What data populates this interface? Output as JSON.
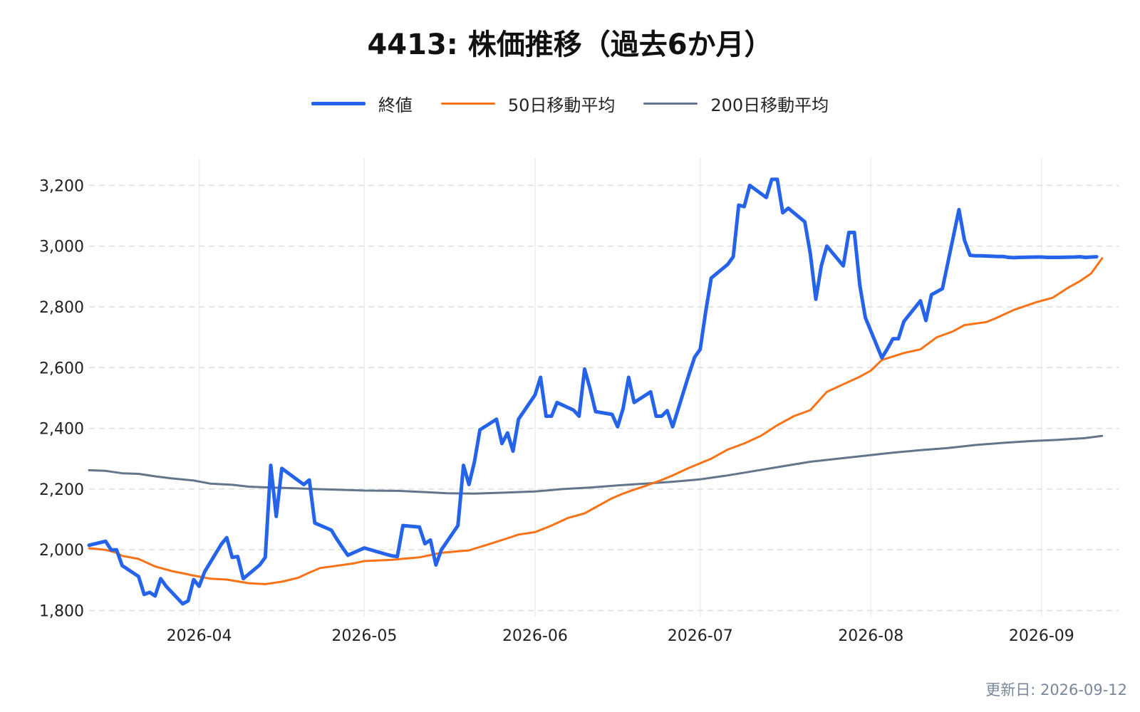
{
  "chart_data": {
    "type": "line",
    "title": "4413: 株価推移（過去6か月）",
    "xlabel": "",
    "ylabel": "",
    "ylim": [
      1780,
      3290
    ],
    "xlim": [
      "2026-03-12",
      "2026-09-15"
    ],
    "yticks": [
      1800,
      2000,
      2200,
      2400,
      2600,
      2800,
      3000,
      3200
    ],
    "ytick_labels": [
      "1,800",
      "2,000",
      "2,200",
      "2,400",
      "2,600",
      "2,800",
      "3,000",
      "3,200"
    ],
    "xticks": [
      "2026-04-01",
      "2026-05-01",
      "2026-06-01",
      "2026-07-01",
      "2026-08-01",
      "2026-09-01"
    ],
    "xtick_labels": [
      "2026-04",
      "2026-05",
      "2026-06",
      "2026-07",
      "2026-08",
      "2026-09"
    ],
    "grid": "horizontal-dashed",
    "legend_position": "top-center",
    "series": [
      {
        "name": "終値",
        "color": "#2563eb",
        "width": 5,
        "x": [
          "2026-03-12",
          "2026-03-15",
          "2026-03-16",
          "2026-03-17",
          "2026-03-18",
          "2026-03-21",
          "2026-03-22",
          "2026-03-23",
          "2026-03-24",
          "2026-03-25",
          "2026-03-26",
          "2026-03-29",
          "2026-03-30",
          "2026-03-31",
          "2026-04-01",
          "2026-04-02",
          "2026-04-05",
          "2026-04-06",
          "2026-04-07",
          "2026-04-08",
          "2026-04-09",
          "2026-04-12",
          "2026-04-13",
          "2026-04-14",
          "2026-04-15",
          "2026-04-16",
          "2026-04-19",
          "2026-04-20",
          "2026-04-21",
          "2026-04-22",
          "2026-04-25",
          "2026-04-26",
          "2026-04-27",
          "2026-04-28",
          "2026-05-01",
          "2026-05-04",
          "2026-05-05",
          "2026-05-06",
          "2026-05-07",
          "2026-05-08",
          "2026-05-11",
          "2026-05-12",
          "2026-05-13",
          "2026-05-14",
          "2026-05-15",
          "2026-05-18",
          "2026-05-19",
          "2026-05-20",
          "2026-05-21",
          "2026-05-22",
          "2026-05-25",
          "2026-05-26",
          "2026-05-27",
          "2026-05-28",
          "2026-05-29",
          "2026-06-01",
          "2026-06-02",
          "2026-06-03",
          "2026-06-04",
          "2026-06-05",
          "2026-06-08",
          "2026-06-09",
          "2026-06-10",
          "2026-06-11",
          "2026-06-12",
          "2026-06-15",
          "2026-06-16",
          "2026-06-17",
          "2026-06-18",
          "2026-06-19",
          "2026-06-22",
          "2026-06-23",
          "2026-06-24",
          "2026-06-25",
          "2026-06-26",
          "2026-06-29",
          "2026-06-30",
          "2026-07-01",
          "2026-07-02",
          "2026-07-03",
          "2026-07-06",
          "2026-07-07",
          "2026-07-08",
          "2026-07-09",
          "2026-07-10",
          "2026-07-13",
          "2026-07-14",
          "2026-07-15",
          "2026-07-16",
          "2026-07-17",
          "2026-07-20",
          "2026-07-21",
          "2026-07-22",
          "2026-07-23",
          "2026-07-24",
          "2026-07-27",
          "2026-07-28",
          "2026-07-29",
          "2026-07-30",
          "2026-07-31",
          "2026-08-03",
          "2026-08-04",
          "2026-08-05",
          "2026-08-06",
          "2026-08-07",
          "2026-08-10",
          "2026-08-11",
          "2026-08-12",
          "2026-08-13",
          "2026-08-14",
          "2026-08-17",
          "2026-08-18",
          "2026-08-19",
          "2026-08-20",
          "2026-08-21",
          "2026-08-24",
          "2026-08-25",
          "2026-08-26",
          "2026-08-27",
          "2026-08-28",
          "2026-08-31",
          "2026-09-01",
          "2026-09-02",
          "2026-09-03",
          "2026-09-04",
          "2026-09-07",
          "2026-09-08",
          "2026-09-09",
          "2026-09-10",
          "2026-09-11"
        ],
        "y": [
          2015,
          2028,
          2000,
          2000,
          1948,
          1912,
          1853,
          1860,
          1848,
          1905,
          1880,
          1822,
          1832,
          1902,
          1880,
          1928,
          2018,
          2040,
          1975,
          1978,
          1905,
          1950,
          1975,
          2278,
          2110,
          2268,
          2228,
          2215,
          2230,
          2088,
          2065,
          2035,
          2008,
          1982,
          2006,
          1990,
          1985,
          1980,
          1978,
          2080,
          2075,
          2020,
          2032,
          1950,
          2000,
          2080,
          2278,
          2215,
          2290,
          2395,
          2430,
          2350,
          2385,
          2325,
          2430,
          2510,
          2568,
          2440,
          2440,
          2485,
          2460,
          2440,
          2595,
          2530,
          2455,
          2446,
          2405,
          2465,
          2568,
          2485,
          2520,
          2440,
          2440,
          2458,
          2405,
          2580,
          2635,
          2660,
          2785,
          2895,
          2940,
          2965,
          3135,
          3130,
          3200,
          3160,
          3220,
          3220,
          3110,
          3125,
          3080,
          2975,
          2825,
          2935,
          3000,
          2935,
          3045,
          3045,
          2870,
          2765,
          2632,
          2662,
          2695,
          2695,
          2752,
          2820,
          2755,
          2840,
          2850,
          2860,
          3120,
          3020,
          2970,
          2968,
          2968,
          2966,
          2966,
          2963,
          2962,
          2963,
          2964,
          2964,
          2963,
          2963,
          2963,
          2964,
          2965,
          2963,
          2964,
          2965
        ]
      },
      {
        "name": "50日移動平均",
        "color": "#f97316",
        "width": 3,
        "x": [
          "2026-03-12",
          "2026-03-15",
          "2026-03-17",
          "2026-03-18",
          "2026-03-21",
          "2026-03-24",
          "2026-03-27",
          "2026-03-31",
          "2026-04-03",
          "2026-04-06",
          "2026-04-10",
          "2026-04-13",
          "2026-04-16",
          "2026-04-19",
          "2026-04-21",
          "2026-04-23",
          "2026-04-27",
          "2026-04-29",
          "2026-05-01",
          "2026-05-06",
          "2026-05-11",
          "2026-05-15",
          "2026-05-20",
          "2026-05-23",
          "2026-05-27",
          "2026-05-29",
          "2026-06-01",
          "2026-06-04",
          "2026-06-07",
          "2026-06-10",
          "2026-06-12",
          "2026-06-15",
          "2026-06-17",
          "2026-06-19",
          "2026-06-21",
          "2026-06-24",
          "2026-06-26",
          "2026-06-29",
          "2026-07-03",
          "2026-07-06",
          "2026-07-09",
          "2026-07-12",
          "2026-07-15",
          "2026-07-18",
          "2026-07-21",
          "2026-07-24",
          "2026-07-27",
          "2026-07-30",
          "2026-08-01",
          "2026-08-03",
          "2026-08-07",
          "2026-08-10",
          "2026-08-13",
          "2026-08-16",
          "2026-08-18",
          "2026-08-22",
          "2026-08-24",
          "2026-08-27",
          "2026-08-31",
          "2026-09-03",
          "2026-09-06",
          "2026-09-08",
          "2026-09-10",
          "2026-09-12"
        ],
        "y": [
          2005,
          2000,
          1990,
          1980,
          1970,
          1945,
          1930,
          1915,
          1905,
          1902,
          1890,
          1887,
          1895,
          1908,
          1925,
          1940,
          1950,
          1955,
          1963,
          1967,
          1975,
          1990,
          1998,
          2015,
          2038,
          2050,
          2058,
          2080,
          2105,
          2120,
          2140,
          2170,
          2185,
          2198,
          2210,
          2230,
          2245,
          2270,
          2300,
          2330,
          2350,
          2375,
          2410,
          2440,
          2460,
          2520,
          2545,
          2570,
          2590,
          2625,
          2648,
          2660,
          2700,
          2720,
          2740,
          2750,
          2765,
          2790,
          2815,
          2830,
          2865,
          2885,
          2910,
          2960
        ]
      },
      {
        "name": "200日移動平均",
        "color": "#64748b",
        "width": 3,
        "x": [
          "2026-03-12",
          "2026-03-15",
          "2026-03-18",
          "2026-03-21",
          "2026-03-24",
          "2026-03-27",
          "2026-03-31",
          "2026-04-03",
          "2026-04-07",
          "2026-04-10",
          "2026-04-14",
          "2026-04-18",
          "2026-04-22",
          "2026-04-26",
          "2026-05-01",
          "2026-05-07",
          "2026-05-12",
          "2026-05-16",
          "2026-05-21",
          "2026-05-26",
          "2026-06-01",
          "2026-06-06",
          "2026-06-11",
          "2026-06-16",
          "2026-06-21",
          "2026-06-26",
          "2026-07-01",
          "2026-07-06",
          "2026-07-11",
          "2026-07-16",
          "2026-07-21",
          "2026-07-26",
          "2026-07-31",
          "2026-08-05",
          "2026-08-10",
          "2026-08-15",
          "2026-08-20",
          "2026-08-25",
          "2026-08-30",
          "2026-09-04",
          "2026-09-09",
          "2026-09-12"
        ],
        "y": [
          2262,
          2260,
          2252,
          2250,
          2242,
          2235,
          2228,
          2218,
          2214,
          2208,
          2205,
          2203,
          2200,
          2198,
          2195,
          2194,
          2190,
          2186,
          2185,
          2188,
          2192,
          2200,
          2205,
          2212,
          2218,
          2224,
          2232,
          2245,
          2260,
          2275,
          2290,
          2300,
          2310,
          2320,
          2328,
          2335,
          2345,
          2352,
          2358,
          2362,
          2368,
          2375
        ]
      }
    ]
  },
  "footer": {
    "updated": "更新日: 2026-09-12"
  }
}
